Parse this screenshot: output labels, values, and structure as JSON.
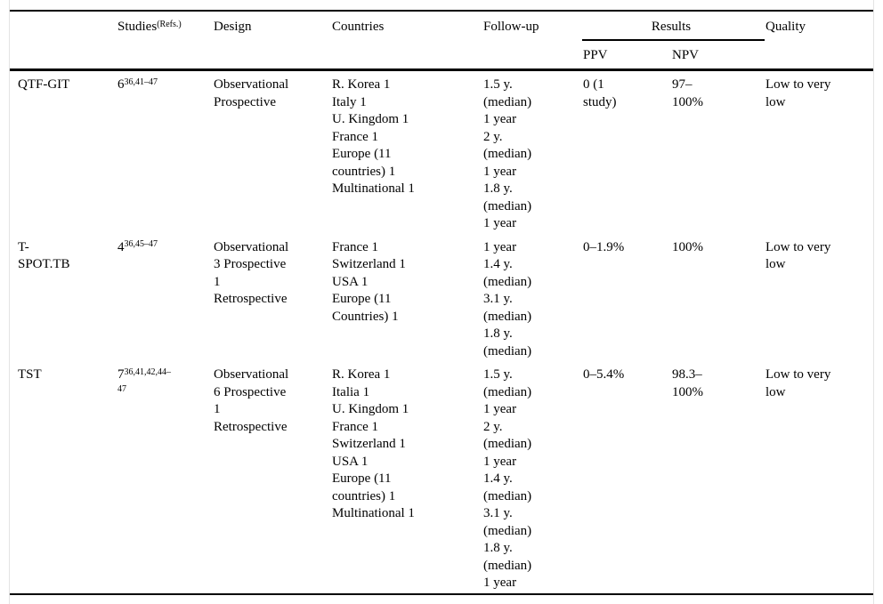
{
  "page": {
    "background": "#ffffff",
    "rule_color": "#000000",
    "side_frame_color": "#e4e4e4",
    "text_color": "#000000"
  },
  "table": {
    "header": {
      "test": "",
      "studies_label": "Studies",
      "studies_refs_sup": "(Refs.)",
      "design": "Design",
      "countries": "Countries",
      "followup": "Follow-up",
      "results_group": "Results",
      "ppv": "PPV",
      "npv": "NPV",
      "quality": "Quality"
    },
    "rows": [
      {
        "test": "QTF-GIT",
        "studies_count": "6",
        "studies_refs": "36,41–47",
        "design": [
          "Observational",
          "Prospective"
        ],
        "countries": [
          "R. Korea 1",
          "Italy 1",
          "U. Kingdom 1",
          "France 1",
          "Europe (11",
          "countries) 1",
          "Multinational 1"
        ],
        "followup": [
          "1.5 y.",
          "(median)",
          "1 year",
          "2 y.",
          "(median)",
          "1 year",
          "1.8 y.",
          "(median)",
          "1 year"
        ],
        "ppv": [
          "0 (1",
          "study)"
        ],
        "npv": [
          "97–",
          "100%"
        ],
        "quality": [
          "Low to very",
          "low"
        ]
      },
      {
        "test": [
          "T-",
          "SPOT.TB"
        ],
        "studies_count": "4",
        "studies_refs": "36,45–47",
        "design": [
          "Observational",
          "3 Prospective",
          "1",
          "Retrospective"
        ],
        "countries": [
          "France 1",
          "Switzerland 1",
          "USA 1",
          "Europe (11",
          "Countries) 1"
        ],
        "followup": [
          "1 year",
          "1.4 y.",
          "(median)",
          "3.1 y.",
          "(median)",
          "1.8 y.",
          "(median)"
        ],
        "ppv": [
          "0–1.9%"
        ],
        "npv": [
          "100%"
        ],
        "quality": [
          "Low to very",
          "low"
        ]
      },
      {
        "test": "TST",
        "studies_count": "7",
        "studies_refs": [
          "36,41,42,44–",
          "47"
        ],
        "design": [
          "Observational",
          "6 Prospective",
          "1",
          "Retrospective"
        ],
        "countries": [
          "R. Korea 1",
          "Italia 1",
          "U. Kingdom 1",
          "France 1",
          "Switzerland 1",
          "USA 1",
          "Europe (11",
          "countries) 1",
          "Multinational 1"
        ],
        "followup": [
          "1.5 y.",
          "(median)",
          "1 year",
          "2 y.",
          "(median)",
          "1 year",
          "1.4 y.",
          "(median)",
          "3.1 y.",
          "(median)",
          "1.8 y.",
          "(median)",
          "1 year"
        ],
        "ppv": [
          "0–5.4%"
        ],
        "npv": [
          "98.3–",
          "100%"
        ],
        "quality": [
          "Low to very",
          "low"
        ]
      }
    ]
  }
}
